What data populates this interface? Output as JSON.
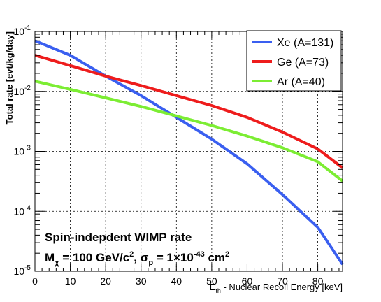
{
  "chart_data": {
    "type": "line",
    "title": "",
    "xlabel": "E_th - Nuclear Recoil Energy [keV]",
    "xlabel_parts": {
      "main": "E",
      "sub": "th",
      "rest": " - Nuclear Recoil Energy [keV]"
    },
    "ylabel": "Total rate [evt/kg/day]",
    "xlim": [
      0,
      87
    ],
    "ylim": [
      1e-05,
      0.1
    ],
    "yscale": "log",
    "grid": true,
    "legend_position": "top-right",
    "x_ticks": [
      "0",
      "10",
      "20",
      "30",
      "40",
      "50",
      "60",
      "70",
      "80"
    ],
    "y_ticks": [
      {
        "base": "10",
        "exp": "-5"
      },
      {
        "base": "10",
        "exp": "-4"
      },
      {
        "base": "10",
        "exp": "-3"
      },
      {
        "base": "10",
        "exp": "-2"
      },
      {
        "base": "10",
        "exp": "-1"
      }
    ],
    "annotations": {
      "line1": "Spin-indepdent WIMP rate",
      "line2_parts": [
        {
          "t": "M",
          "k": "n"
        },
        {
          "t": "χ",
          "k": "sub"
        },
        {
          "t": " = 100 GeV/c",
          "k": "n"
        },
        {
          "t": "2",
          "k": "sup"
        },
        {
          "t": ", ",
          "k": "n"
        },
        {
          "t": "σ",
          "k": "n"
        },
        {
          "t": "p",
          "k": "sub"
        },
        {
          "t": " = 1",
          "k": "n"
        },
        {
          "t": "×",
          "k": "n"
        },
        {
          "t": "10",
          "k": "n"
        },
        {
          "t": "-43",
          "k": "sup"
        },
        {
          "t": " cm",
          "k": "n"
        },
        {
          "t": "2",
          "k": "sup"
        }
      ]
    },
    "series": [
      {
        "name": "Xe (A=131)",
        "color": "#3a5ff0",
        "x": [
          0,
          10,
          20,
          30,
          40,
          50,
          60,
          70,
          80,
          87
        ],
        "y": [
          0.07,
          0.04,
          0.018,
          0.0085,
          0.0037,
          0.0016,
          0.00062,
          0.00019,
          5.4e-05,
          1.3e-05
        ]
      },
      {
        "name": "Ge (A=73)",
        "color": "#ee1c1c",
        "x": [
          0,
          10,
          20,
          30,
          40,
          50,
          60,
          70,
          80,
          87
        ],
        "y": [
          0.04,
          0.027,
          0.018,
          0.0125,
          0.0085,
          0.0058,
          0.0037,
          0.0021,
          0.0011,
          0.00053
        ]
      },
      {
        "name": "Ar (A=40)",
        "color": "#7ced33",
        "x": [
          0,
          10,
          20,
          30,
          40,
          50,
          60,
          70,
          80,
          87
        ],
        "y": [
          0.0148,
          0.0108,
          0.0078,
          0.0056,
          0.0039,
          0.0027,
          0.0018,
          0.00115,
          0.00067,
          0.00032
        ]
      }
    ]
  }
}
